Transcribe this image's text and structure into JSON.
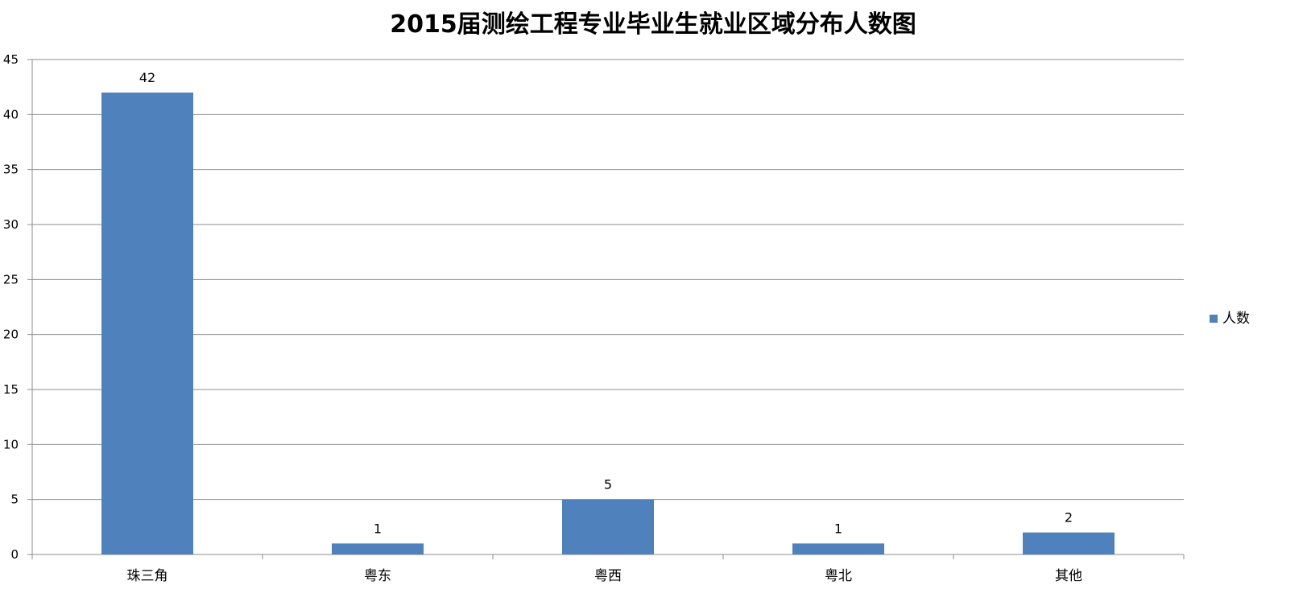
{
  "chart_data": {
    "type": "bar",
    "title": "2015届测绘工程专业毕业生就业区域分布人数图",
    "categories": [
      "珠三角",
      "粤东",
      "粤西",
      "粤北",
      "其他"
    ],
    "series": [
      {
        "name": "人数",
        "values": [
          42,
          1,
          5,
          1,
          2
        ],
        "color": "#4f81bd"
      }
    ],
    "data_labels": [
      "42",
      "1",
      "5",
      "1",
      "2"
    ],
    "xlabel": "",
    "ylabel": "",
    "ylim": [
      0,
      45
    ],
    "yticks": [
      0,
      5,
      10,
      15,
      20,
      25,
      30,
      35,
      40,
      45
    ],
    "grid": true,
    "legend_position": "right",
    "colors": {
      "bar": "#4f81bd",
      "gridline": "#8c8c8c",
      "axis": "#8c8c8c"
    }
  }
}
